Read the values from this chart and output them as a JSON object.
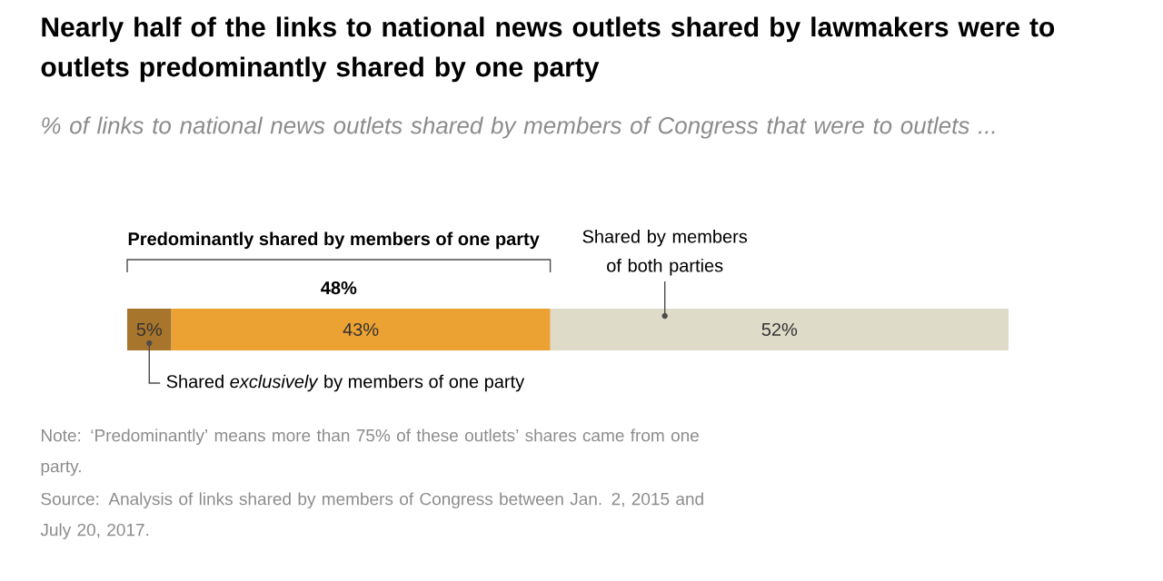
{
  "chart_data": {
    "type": "bar",
    "orientation": "horizontal",
    "stacked": true,
    "title": "Nearly half of the links to national news outlets shared by lawmakers were to outlets predominantly shared by one party",
    "subtitle": "% of links to national news outlets shared by members of Congress that were to outlets ...",
    "categories": [
      null
    ],
    "series": [
      {
        "color": "#a8752c",
        "values": [
          5
        ],
        "value_labels": [
          "5%"
        ]
      },
      {
        "color": "#eca133",
        "values": [
          43
        ],
        "value_labels": [
          "43%"
        ]
      },
      {
        "color": "#dedbc9",
        "values": [
          52
        ],
        "value_labels": [
          "52%"
        ]
      }
    ],
    "annotations": [
      "Predominantly shared by members of one party",
      "48%",
      "Shared by members of both parties",
      "Shared *exclusively* by members of one party",
      "Note: ‘Predominantly’ means more than 75% of these outlets’ shares came from one party.",
      "Source: Analysis of links shared by members of Congress between Jan. 2, 2015 and July 20, 2017."
    ]
  }
}
